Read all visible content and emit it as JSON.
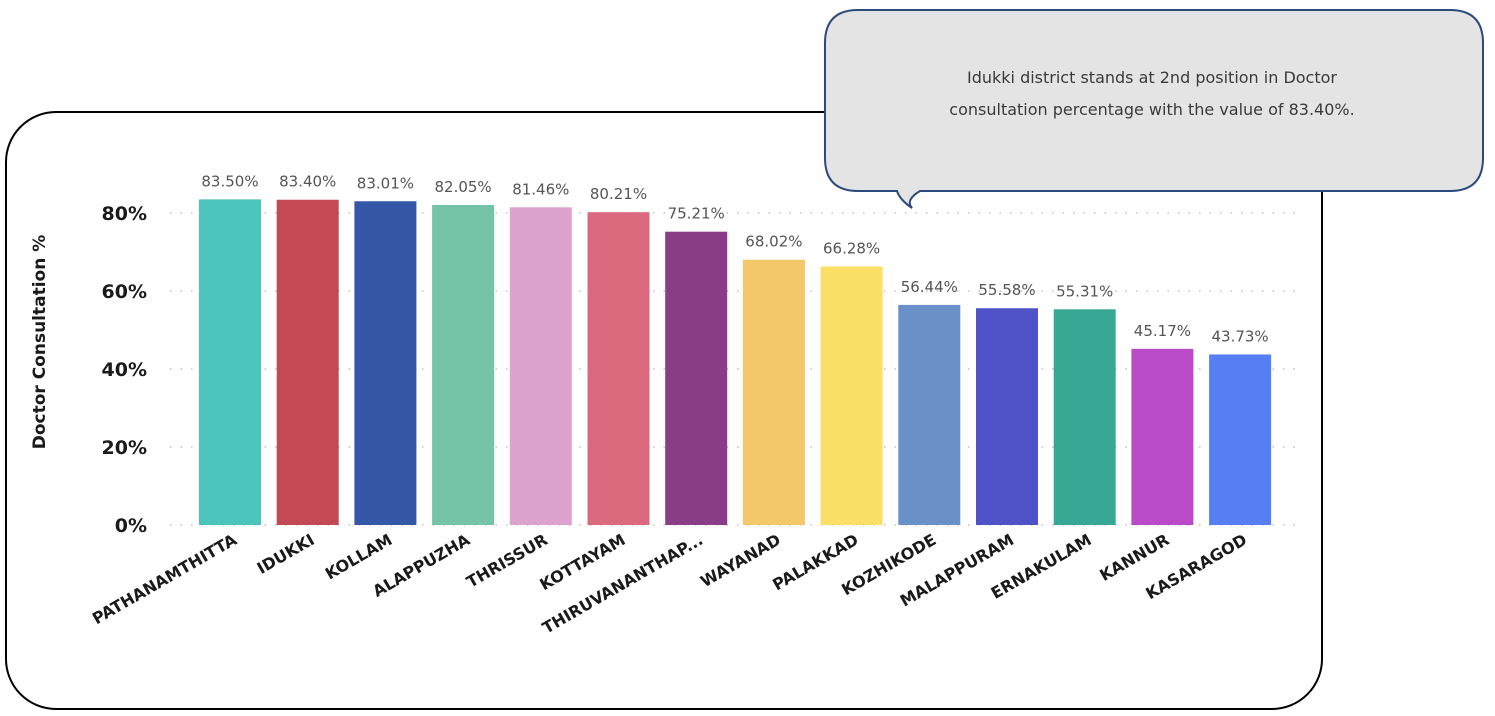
{
  "callout": {
    "text_line1": "Idukki district stands at 2nd position in Doctor",
    "text_line2": "consultation percentage with the value of 83.40%."
  },
  "chart_data": {
    "type": "bar",
    "ylabel": "Doctor Consultation %",
    "xlabel": "",
    "ylim": [
      0,
      90
    ],
    "yticks": [
      0,
      20,
      40,
      60,
      80
    ],
    "ytick_labels": [
      "0%",
      "20%",
      "40%",
      "60%",
      "80%"
    ],
    "grid": "horizontal-dotted",
    "categories": [
      "PATHANAMTHITTA",
      "IDUKKI",
      "KOLLAM",
      "ALAPPUZHA",
      "THRISSUR",
      "KOTTAYAM",
      "THIRUVANANTHAP...",
      "WAYANAD",
      "PALAKKAD",
      "KOZHIKODE",
      "MALAPPURAM",
      "ERNAKULAM",
      "KANNUR",
      "KASARAGOD"
    ],
    "values": [
      83.5,
      83.4,
      83.01,
      82.05,
      81.46,
      80.21,
      75.21,
      68.02,
      66.28,
      56.44,
      55.58,
      55.31,
      45.17,
      43.73
    ],
    "value_labels": [
      "83.50%",
      "83.40%",
      "83.01%",
      "82.05%",
      "81.46%",
      "80.21%",
      "75.21%",
      "68.02%",
      "66.28%",
      "56.44%",
      "55.58%",
      "55.31%",
      "45.17%",
      "43.73%"
    ],
    "colors": [
      "#4BC5BB",
      "#C34A55",
      "#3457A8",
      "#75C4A8",
      "#DCA3CE",
      "#DC6A7E",
      "#893D86",
      "#F3C86A",
      "#FCDF66",
      "#6991C8",
      "#5052C8",
      "#38A794",
      "#BA4AC8",
      "#577EF3"
    ]
  }
}
